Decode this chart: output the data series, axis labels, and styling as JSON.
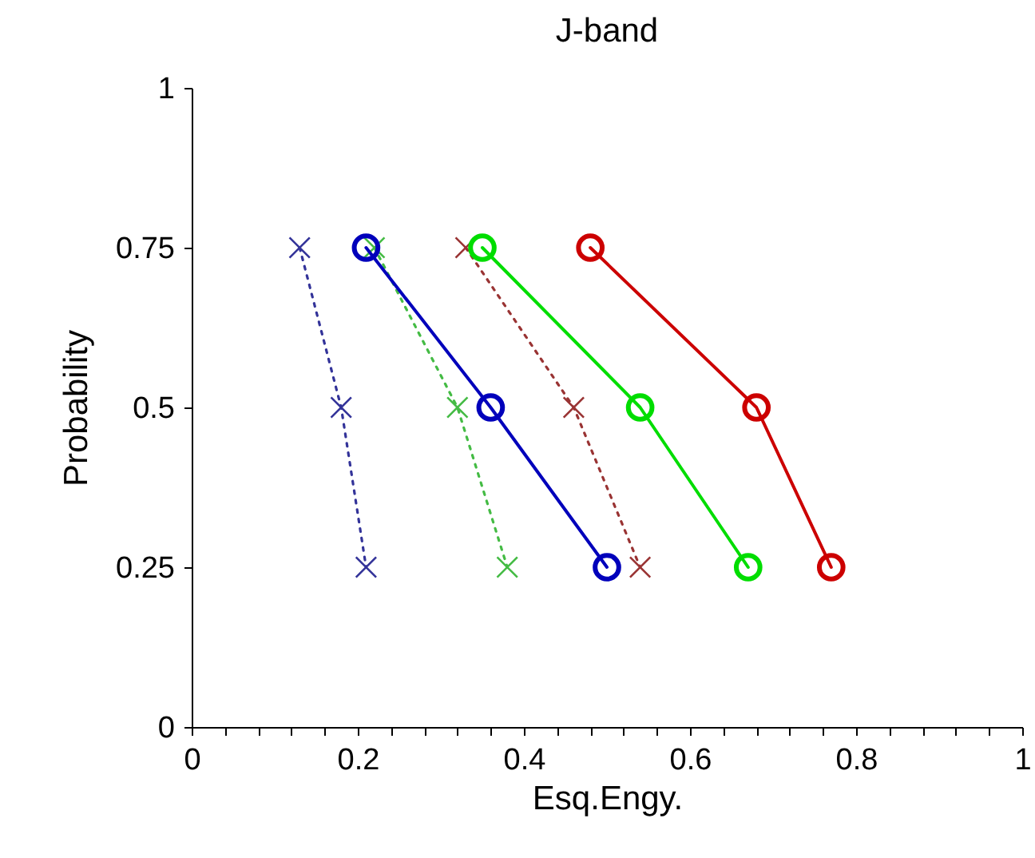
{
  "chart_data": {
    "type": "line",
    "title": "J-band",
    "xlabel": "Esq.Engy.",
    "ylabel": "Probability",
    "xlim": [
      0,
      1
    ],
    "ylim": [
      0,
      1
    ],
    "xticks": [
      0,
      {
        "value": 0.04,
        "label": null
      },
      {
        "value": 0.08,
        "label": null
      },
      {
        "value": 0.12,
        "label": null
      },
      {
        "value": 0.16,
        "label": null
      },
      {
        "value": 0.2,
        "label": "0.2"
      },
      {
        "value": 0.24,
        "label": null
      },
      {
        "value": 0.28,
        "label": null
      },
      {
        "value": 0.32,
        "label": null
      },
      {
        "value": 0.36,
        "label": null
      },
      {
        "value": 0.4,
        "label": "0.4"
      },
      {
        "value": 0.44,
        "label": null
      },
      {
        "value": 0.48,
        "label": null
      },
      {
        "value": 0.52,
        "label": null
      },
      {
        "value": 0.56,
        "label": null
      },
      {
        "value": 0.6,
        "label": "0.6"
      },
      {
        "value": 0.64,
        "label": null
      },
      {
        "value": 0.68,
        "label": null
      },
      {
        "value": 0.72,
        "label": null
      },
      {
        "value": 0.76,
        "label": null
      },
      {
        "value": 0.8,
        "label": "0.8"
      },
      {
        "value": 0.84,
        "label": null
      },
      {
        "value": 0.88,
        "label": null
      },
      {
        "value": 0.92,
        "label": null
      },
      {
        "value": 0.96,
        "label": null
      },
      1
    ],
    "yticks": [
      0,
      0.25,
      0.5,
      0.75,
      1
    ],
    "grid": false,
    "series": [
      {
        "color": "#333399",
        "marker": "cross",
        "line_style": "dotted",
        "x": [
          0.13,
          0.18,
          0.21
        ],
        "values": [
          0.75,
          0.5,
          0.25
        ]
      },
      {
        "color": "#44bb44",
        "marker": "cross",
        "line_style": "dotted",
        "x": [
          0.22,
          0.32,
          0.38
        ],
        "values": [
          0.75,
          0.5,
          0.25
        ]
      },
      {
        "color": "#993333",
        "marker": "cross",
        "line_style": "dotted",
        "x": [
          0.33,
          0.46,
          0.54
        ],
        "values": [
          0.75,
          0.5,
          0.25
        ]
      },
      {
        "color": "#0000bb",
        "marker": "circle",
        "line_style": "solid",
        "x": [
          0.21,
          0.36,
          0.5
        ],
        "values": [
          0.75,
          0.5,
          0.25
        ]
      },
      {
        "color": "#00dd00",
        "marker": "circle",
        "line_style": "solid",
        "x": [
          0.35,
          0.54,
          0.67
        ],
        "values": [
          0.75,
          0.5,
          0.25
        ]
      },
      {
        "color": "#cc0000",
        "marker": "circle",
        "line_style": "solid",
        "x": [
          0.48,
          0.68,
          0.77
        ],
        "values": [
          0.75,
          0.5,
          0.25
        ]
      }
    ]
  }
}
